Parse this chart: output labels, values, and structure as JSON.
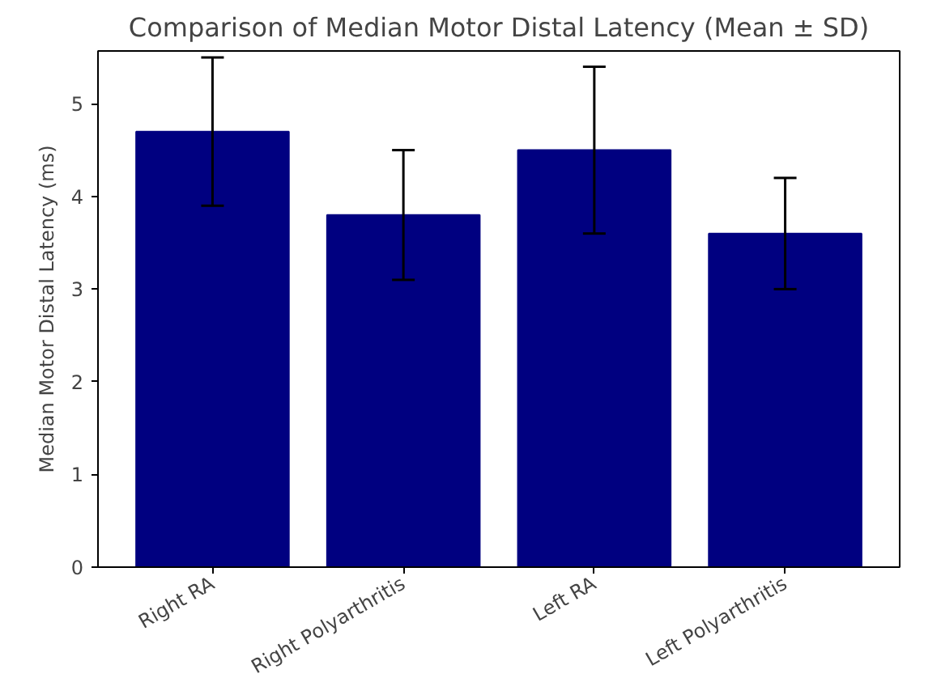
{
  "chart_data": {
    "type": "bar",
    "title": "Comparison of Median Motor Distal Latency (Mean ± SD)",
    "ylabel": "Median Motor Distal Latency (ms)",
    "categories": [
      "Right RA",
      "Right Polyarthritis",
      "Left RA",
      "Left Polyarthritis"
    ],
    "values": [
      4.7,
      3.8,
      4.5,
      3.6
    ],
    "errors": [
      0.8,
      0.7,
      0.9,
      0.6
    ],
    "color": "#000080",
    "ylim": [
      0,
      5.57
    ],
    "yticks": [
      0,
      1,
      2,
      3,
      4,
      5
    ],
    "grid": false
  }
}
